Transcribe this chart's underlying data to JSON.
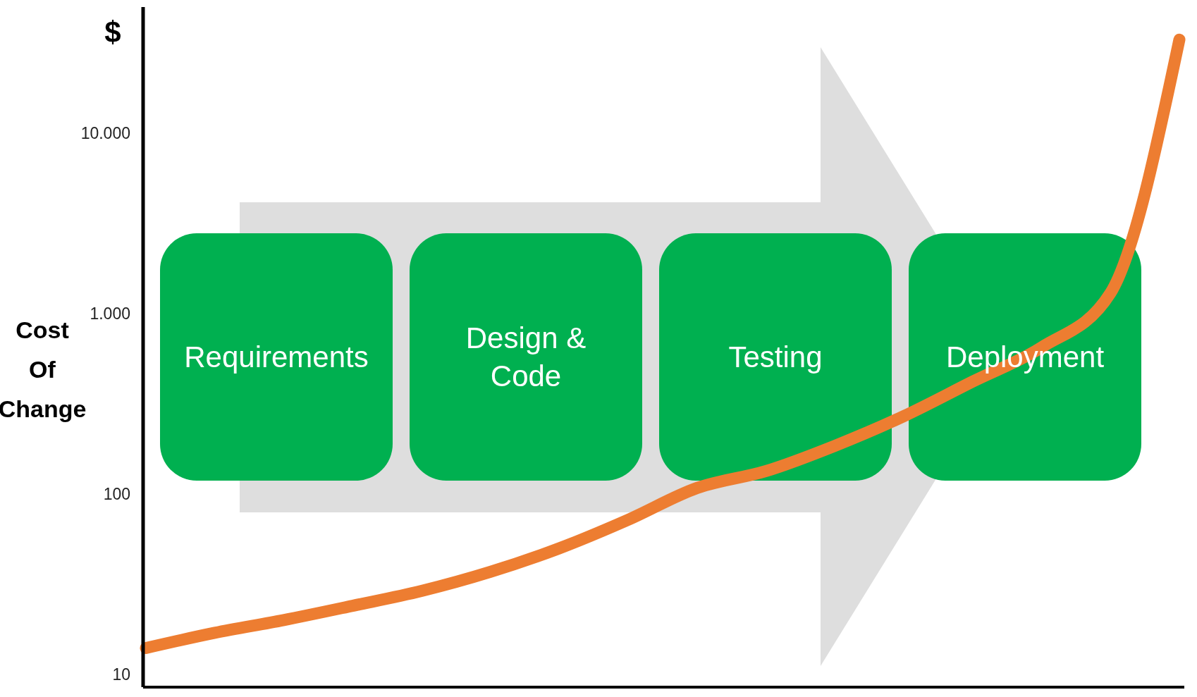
{
  "chart_data": {
    "type": "line",
    "ylabel": "Cost Of Change",
    "annotations": [
      "$",
      "Requirements",
      "Design & Code",
      "Testing",
      "Deployment"
    ],
    "categories": [
      null,
      null,
      null,
      null,
      null,
      null,
      null,
      null,
      null,
      null,
      null,
      null,
      null,
      null,
      null,
      null
    ],
    "series": [
      {
        "color": "#ed7d31",
        "values": [
          14,
          17,
          20,
          24,
          29,
          37,
          50,
          72,
          108,
          134,
          185,
          270,
          420,
          650,
          1300,
          33000
        ]
      }
    ],
    "log": "y",
    "ylim": [
      8.5,
      50000
    ],
    "yticks": [
      10,
      100,
      {
        "value": 1000,
        "label": "1.000"
      },
      {
        "value": 10000,
        "label": "10.000"
      }
    ],
    "tick_labels": "y",
    "grid": false,
    "line_style": "solid"
  }
}
